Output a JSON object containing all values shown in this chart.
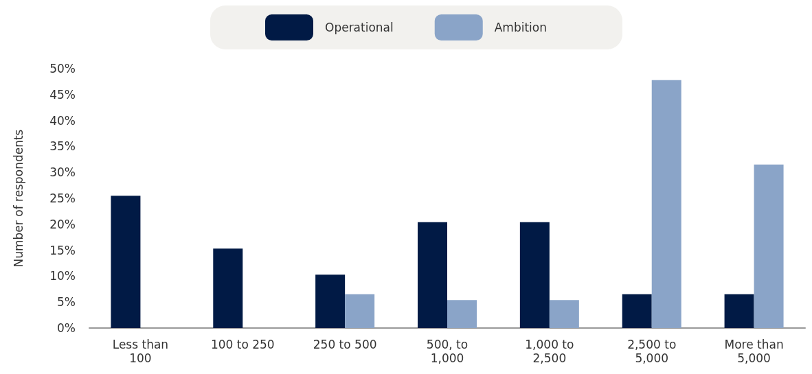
{
  "chart_data": {
    "type": "bar",
    "ylabel": "Number of respondents",
    "categories": [
      "Less than 100",
      "100 to 250",
      "250 to 500",
      "500, to 1,000",
      "1,000 to 2,500",
      "2,500 to 5,000",
      "More than 5,000"
    ],
    "series": [
      {
        "name": "Operational",
        "color": "#011a45",
        "values": [
          25.5,
          15.3,
          10.3,
          20.4,
          20.4,
          6.5,
          6.5
        ]
      },
      {
        "name": "Ambition",
        "color": "#8aa4c8",
        "values": [
          0,
          0,
          6.5,
          5.4,
          5.4,
          47.8,
          31.5
        ]
      }
    ],
    "ylim": [
      0,
      50
    ],
    "yticks": [
      {
        "value": 0,
        "label": "0%"
      },
      {
        "value": 5,
        "label": "5%"
      },
      {
        "value": 10,
        "label": "10%"
      },
      {
        "value": 15,
        "label": "15%"
      },
      {
        "value": 20,
        "label": "20%"
      },
      {
        "value": 25,
        "label": "25%"
      },
      {
        "value": 30,
        "label": "30%"
      },
      {
        "value": 35,
        "label": "35%"
      },
      {
        "value": 40,
        "label": "40%"
      },
      {
        "value": 45,
        "label": "45%"
      },
      {
        "value": 50,
        "label": "50%"
      }
    ],
    "grid": false,
    "legend": "top"
  }
}
